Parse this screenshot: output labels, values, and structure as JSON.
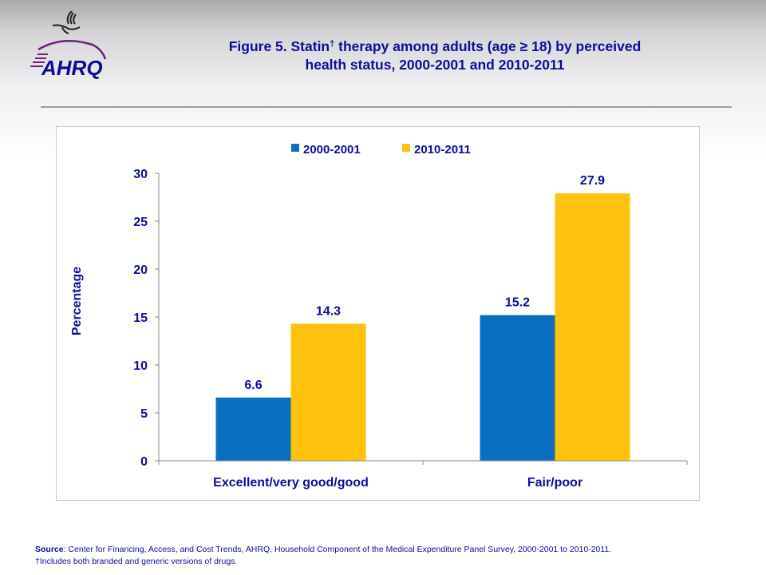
{
  "header": {
    "logo_text": "AHRQ",
    "logo_icon": "hhs-eagle-icon",
    "title_part1": "Figure 5. Statin",
    "title_dagger": "†",
    "title_part2": " therapy among adults (age ≥ 18) by perceived",
    "title_line2": "health status,  2000-2001 and 2010-2011"
  },
  "colors": {
    "title": "#0d0d99",
    "series_2000": "#0b6fc1",
    "series_2010": "#ffc20e",
    "logo_purple": "#6d1f7e"
  },
  "chart_data": {
    "type": "bar",
    "title": "Figure 5. Statin† therapy among adults (age ≥ 18) by perceived health status, 2000-2001 and 2010-2011",
    "categories": [
      "Excellent/very good/good",
      "Fair/poor"
    ],
    "series": [
      {
        "name": "2000-2001",
        "values": [
          6.6,
          15.2
        ],
        "labels": [
          "6.6",
          "15.2"
        ]
      },
      {
        "name": "2010-2011",
        "values": [
          14.3,
          27.9
        ],
        "labels": [
          "14.3",
          "27.9"
        ]
      }
    ],
    "xlabel": "",
    "ylabel": "Percentage",
    "ylim": [
      0,
      30
    ],
    "yticks": [
      "0",
      "5",
      "10",
      "15",
      "20",
      "25",
      "30"
    ],
    "ytick_values": [
      0,
      5,
      10,
      15,
      20,
      25,
      30
    ],
    "grid": false,
    "legend_position": "top"
  },
  "footer": {
    "source_label": "Source",
    "source_text": ": Center for Financing, Access, and Cost Trends, AHRQ,  Household Component of the Medical Expenditure Panel Survey,  2000-2001 to  2010-2011.",
    "note": "†Includes both branded and generic versions of drugs."
  }
}
